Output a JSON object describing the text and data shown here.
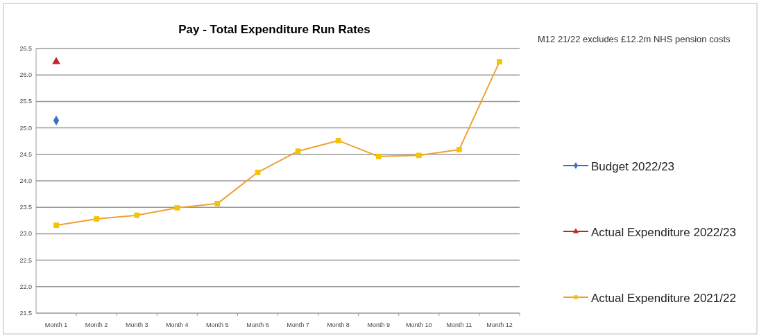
{
  "chart_data": {
    "type": "line",
    "title": "Pay - Total Expenditure Run Rates",
    "annotations": [
      "M12 21/22 excludes £12.2m NHS pension costs"
    ],
    "categories": [
      "Month 1",
      "Month 2",
      "Month 3",
      "Month 4",
      "Month 5",
      "Month 6",
      "Month 7",
      "Month 8",
      "Month 9",
      "Month 10",
      "Month 11",
      "Month 12"
    ],
    "series": [
      {
        "name": "Budget 2022/23",
        "color": "#3a6fc4",
        "marker": "diamond",
        "values": [
          25.14,
          null,
          null,
          null,
          null,
          null,
          null,
          null,
          null,
          null,
          null,
          null
        ]
      },
      {
        "name": "Actual Expenditure 2022/23",
        "color": "#c0272d",
        "marker": "triangle",
        "values": [
          26.25,
          null,
          null,
          null,
          null,
          null,
          null,
          null,
          null,
          null,
          null,
          null
        ]
      },
      {
        "name": "Actual Expenditure 2021/22",
        "color": "#f0a030",
        "marker": "square",
        "values": [
          23.16,
          23.28,
          23.35,
          23.49,
          23.57,
          24.16,
          24.56,
          24.76,
          24.46,
          24.48,
          24.59,
          26.25
        ]
      }
    ],
    "ylim": [
      21.5,
      26.5
    ],
    "yticks": [
      {
        "value": 21.5,
        "label": "21.5"
      },
      {
        "value": 22,
        "label": "22.0"
      },
      {
        "value": 22.5,
        "label": "22.5"
      },
      {
        "value": 23,
        "label": "23.0"
      },
      {
        "value": 23.5,
        "label": "23.5"
      },
      {
        "value": 24,
        "label": "24.0"
      },
      {
        "value": 24.5,
        "label": "24.5"
      },
      {
        "value": 25,
        "label": "25.0"
      },
      {
        "value": 25.5,
        "label": "25.5"
      },
      {
        "value": 26,
        "label": "26.0"
      },
      {
        "value": 26.5,
        "label": "26.5"
      }
    ],
    "grid": "y",
    "legend": "right"
  }
}
